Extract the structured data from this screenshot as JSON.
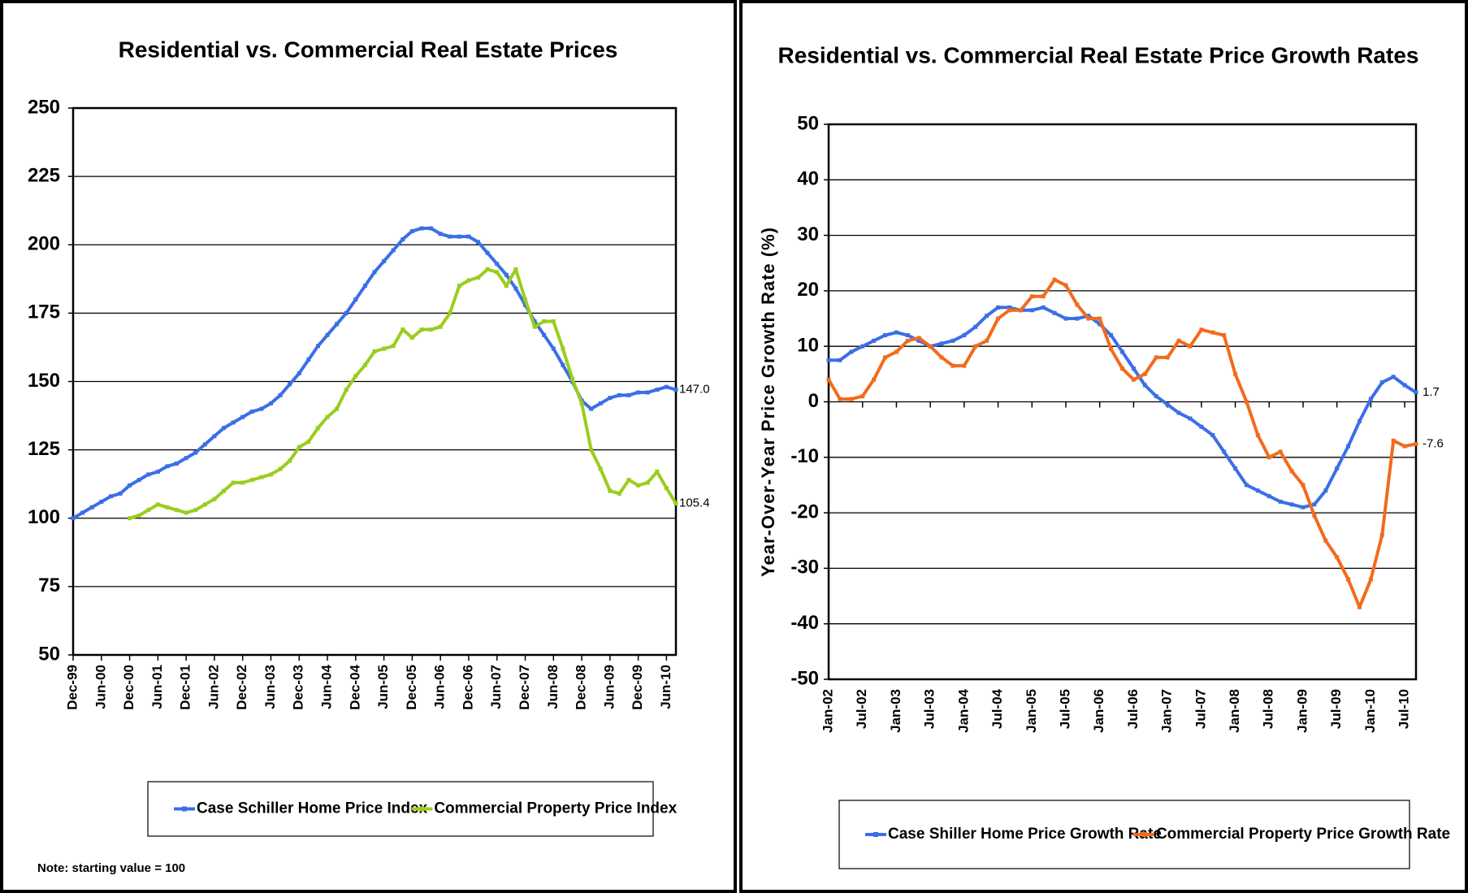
{
  "chart_data": [
    {
      "type": "line",
      "title": "Residential vs. Commercial Real Estate Prices",
      "note": "Note: starting value = 100",
      "categories": [
        "Dec-99",
        null,
        null,
        "Jun-00",
        null,
        null,
        "Dec-00",
        null,
        null,
        "Jun-01",
        null,
        null,
        "Dec-01",
        null,
        null,
        "Jun-02",
        null,
        null,
        "Dec-02",
        null,
        null,
        "Jun-03",
        null,
        null,
        "Dec-03",
        null,
        null,
        "Jun-04",
        null,
        null,
        "Dec-04",
        null,
        null,
        "Jun-05",
        null,
        null,
        "Dec-05",
        null,
        null,
        "Jun-06",
        null,
        null,
        "Dec-06",
        null,
        null,
        "Jun-07",
        null,
        null,
        "Dec-07",
        null,
        null,
        "Jun-08",
        null,
        null,
        "Dec-08",
        null,
        null,
        "Jun-09",
        null,
        null,
        "Dec-09",
        null,
        null,
        "Jun-10",
        null
      ],
      "series": [
        {
          "name": "Case Schiller Home Price Index",
          "color": "#3a6fe6",
          "values": [
            100,
            102,
            104,
            106,
            108,
            109,
            112,
            114,
            116,
            117,
            119,
            120,
            122,
            124,
            127,
            130,
            133,
            135,
            137,
            139,
            140,
            142,
            145,
            149,
            153,
            158,
            163,
            167,
            171,
            175,
            180,
            185,
            190,
            194,
            198,
            202,
            205,
            206,
            206,
            204,
            203,
            203,
            203,
            201,
            197,
            193,
            189,
            184,
            178,
            172,
            167,
            162,
            156,
            150,
            143,
            140,
            142,
            144,
            145,
            145,
            146,
            146,
            147,
            148,
            147
          ],
          "value_labels": [
            null,
            null,
            null,
            null,
            null,
            null,
            null,
            null,
            null,
            null,
            null,
            null,
            null,
            null,
            null,
            null,
            null,
            null,
            null,
            null,
            null,
            null,
            null,
            null,
            null,
            null,
            null,
            null,
            null,
            null,
            null,
            null,
            null,
            null,
            null,
            null,
            null,
            null,
            null,
            null,
            null,
            null,
            null,
            null,
            null,
            null,
            null,
            null,
            null,
            null,
            null,
            null,
            null,
            null,
            null,
            null,
            null,
            null,
            null,
            null,
            null,
            null,
            null,
            null,
            "147.0"
          ]
        },
        {
          "name": "Commercial Property Price Index",
          "color": "#9acd1e",
          "values": [
            null,
            null,
            null,
            null,
            null,
            null,
            100,
            101,
            103,
            105,
            104,
            103,
            102,
            103,
            105,
            107,
            110,
            113,
            113,
            114,
            115,
            116,
            118,
            121,
            126,
            128,
            133,
            137,
            140,
            147,
            152,
            156,
            161,
            162,
            163,
            169,
            166,
            169,
            169,
            170,
            175,
            185,
            187,
            188,
            191,
            190,
            185,
            191,
            180,
            170,
            172,
            172,
            162,
            151,
            142,
            125,
            118,
            110,
            109,
            114,
            112,
            113,
            117,
            111,
            105.4
          ]
        }
      ],
      "ylim": [
        50,
        250
      ],
      "yticks": [
        50,
        75,
        100,
        125,
        150,
        175,
        200,
        225,
        250
      ],
      "grid": true
    },
    {
      "type": "line",
      "title": "Residential vs. Commercial Real Estate Price Growth Rates",
      "y_label": "Year-Over-Year Price Growth Rate (%)",
      "categories": [
        "Jan-02",
        null,
        null,
        "Jul-02",
        null,
        null,
        "Jan-03",
        null,
        null,
        "Jul-03",
        null,
        null,
        "Jan-04",
        null,
        null,
        "Jul-04",
        null,
        null,
        "Jan-05",
        null,
        null,
        "Jul-05",
        null,
        null,
        "Jan-06",
        null,
        null,
        "Jul-06",
        null,
        null,
        "Jan-07",
        null,
        null,
        "Jul-07",
        null,
        null,
        "Jan-08",
        null,
        null,
        "Jul-08",
        null,
        null,
        "Jan-09",
        null,
        null,
        "Jul-09",
        null,
        null,
        "Jan-10",
        null,
        null,
        "Jul-10",
        null
      ],
      "series": [
        {
          "name": "Case Shiller Home Price Growth Rate",
          "color": "#3a6fe6",
          "values": [
            7.5,
            7.5,
            9,
            10,
            11,
            12,
            12.5,
            12,
            11,
            10,
            10.5,
            11,
            12,
            13.5,
            15.5,
            17,
            17,
            16.5,
            16.5,
            17,
            16,
            15,
            15,
            15.5,
            14,
            12,
            9,
            6,
            3,
            1,
            -0.5,
            -2,
            -3,
            -4.5,
            -6,
            -9,
            -12,
            -15,
            -16,
            -17,
            -18,
            -18.5,
            -19,
            -18.5,
            -16,
            -12,
            -8,
            -3.5,
            0.5,
            3.5,
            4.5,
            3,
            1.7
          ]
        },
        {
          "name": "Commercial Property Price Growth Rate",
          "color": "#f26b1d",
          "values": [
            4,
            0.5,
            0.5,
            1,
            4,
            8,
            9,
            11,
            11.5,
            10,
            8,
            6.5,
            6.5,
            10,
            11,
            15,
            16.5,
            16.5,
            19,
            19,
            22,
            21,
            17.5,
            15,
            15,
            9.5,
            6,
            4,
            5,
            8,
            8,
            11,
            10,
            13,
            12.5,
            12,
            5,
            0,
            -6,
            -10,
            -9,
            -12.5,
            -15,
            -20.5,
            -25,
            -28,
            -32,
            -37,
            -32,
            -24,
            -7,
            -8,
            -7.6
          ]
        }
      ],
      "ylim": [
        -50,
        50
      ],
      "yticks": [
        -50,
        -40,
        -30,
        -20,
        -10,
        0,
        10,
        20,
        30,
        40,
        50
      ],
      "grid": true
    }
  ]
}
